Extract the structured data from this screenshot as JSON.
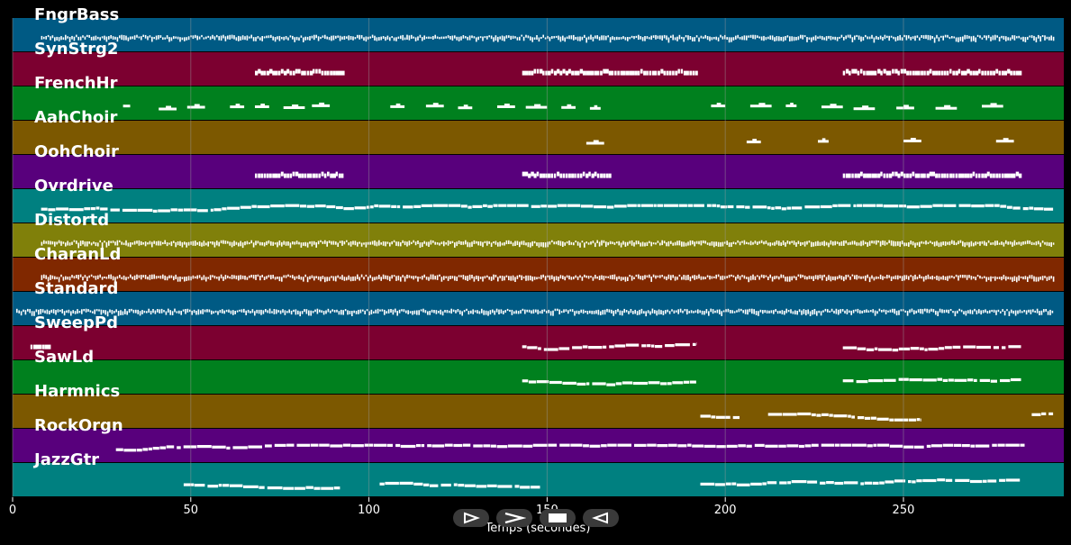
{
  "chart_data": {
    "type": "piano-roll",
    "xlabel": "Temps (secondes)",
    "xlim": [
      0,
      295
    ],
    "x_ticks": [
      0,
      50,
      100,
      150,
      200,
      250
    ],
    "tracks": [
      {
        "name": "FngrBass",
        "color": "#005a84",
        "notes": [
          [
            8,
            292,
            "dense"
          ]
        ]
      },
      {
        "name": "SynStrg2",
        "color": "#7c0030",
        "notes": [
          [
            68,
            93,
            "block"
          ],
          [
            143,
            192,
            "block"
          ],
          [
            233,
            283,
            "block"
          ]
        ]
      },
      {
        "name": "FrenchHr",
        "color": "#00801e",
        "notes": [
          [
            31,
            33,
            "dash"
          ],
          [
            41,
            46,
            "dash"
          ],
          [
            49,
            54,
            "dash"
          ],
          [
            61,
            65,
            "dash"
          ],
          [
            68,
            72,
            "dash"
          ],
          [
            76,
            82,
            "dash"
          ],
          [
            84,
            89,
            "dash"
          ],
          [
            106,
            110,
            "dash"
          ],
          [
            116,
            121,
            "dash"
          ],
          [
            125,
            129,
            "dash"
          ],
          [
            136,
            141,
            "dash"
          ],
          [
            144,
            150,
            "dash"
          ],
          [
            154,
            158,
            "dash"
          ],
          [
            162,
            165,
            "dash"
          ],
          [
            196,
            200,
            "dash"
          ],
          [
            207,
            213,
            "dash"
          ],
          [
            217,
            220,
            "dash"
          ],
          [
            227,
            233,
            "dash"
          ],
          [
            236,
            242,
            "dash"
          ],
          [
            248,
            253,
            "dash"
          ],
          [
            259,
            265,
            "dash"
          ],
          [
            272,
            278,
            "dash"
          ]
        ]
      },
      {
        "name": "AahChoir",
        "color": "#7c5800",
        "notes": [
          [
            161,
            166,
            "dash"
          ],
          [
            206,
            210,
            "dash"
          ],
          [
            226,
            229,
            "dash"
          ],
          [
            250,
            255,
            "dash"
          ],
          [
            276,
            281,
            "dash"
          ]
        ]
      },
      {
        "name": "OohChoir",
        "color": "#58007c",
        "notes": [
          [
            68,
            93,
            "block"
          ],
          [
            143,
            168,
            "block"
          ],
          [
            233,
            283,
            "block"
          ]
        ]
      },
      {
        "name": "Ovrdrive",
        "color": "#008080",
        "notes": [
          [
            8,
            292,
            "line"
          ]
        ]
      },
      {
        "name": "Distortd",
        "color": "#80800a",
        "notes": [
          [
            8,
            292,
            "dense"
          ]
        ]
      },
      {
        "name": "CharanLd",
        "color": "#802800",
        "notes": [
          [
            8,
            292,
            "dense"
          ]
        ]
      },
      {
        "name": "Standard",
        "color": "#005a84",
        "notes": [
          [
            1,
            292,
            "dense"
          ]
        ]
      },
      {
        "name": "SweepPd",
        "color": "#7c0030",
        "notes": [
          [
            5,
            10,
            "block"
          ],
          [
            143,
            192,
            "line"
          ],
          [
            233,
            283,
            "line"
          ]
        ]
      },
      {
        "name": "SawLd",
        "color": "#00801e",
        "notes": [
          [
            143,
            192,
            "line"
          ],
          [
            233,
            283,
            "line"
          ]
        ]
      },
      {
        "name": "Harmnics",
        "color": "#7c5800",
        "notes": [
          [
            193,
            204,
            "line"
          ],
          [
            212,
            255,
            "line"
          ],
          [
            286,
            292,
            "line"
          ]
        ]
      },
      {
        "name": "RockOrgn",
        "color": "#58007c",
        "notes": [
          [
            29,
            284,
            "line"
          ]
        ]
      },
      {
        "name": "JazzGtr",
        "color": "#008080",
        "notes": [
          [
            48,
            92,
            "line"
          ],
          [
            103,
            148,
            "line"
          ],
          [
            193,
            283,
            "line"
          ]
        ]
      }
    ]
  },
  "controls": [
    {
      "name": "play-button",
      "icon": "play-icon"
    },
    {
      "name": "forward-button",
      "icon": "chevron-right-icon"
    },
    {
      "name": "stop-button",
      "icon": "stop-icon"
    },
    {
      "name": "rewind-button",
      "icon": "rewind-icon"
    }
  ],
  "colors": {
    "background": "#000000",
    "note": "#ffffff",
    "grid": "#9a9a9a",
    "button": "#3a3a3a"
  }
}
